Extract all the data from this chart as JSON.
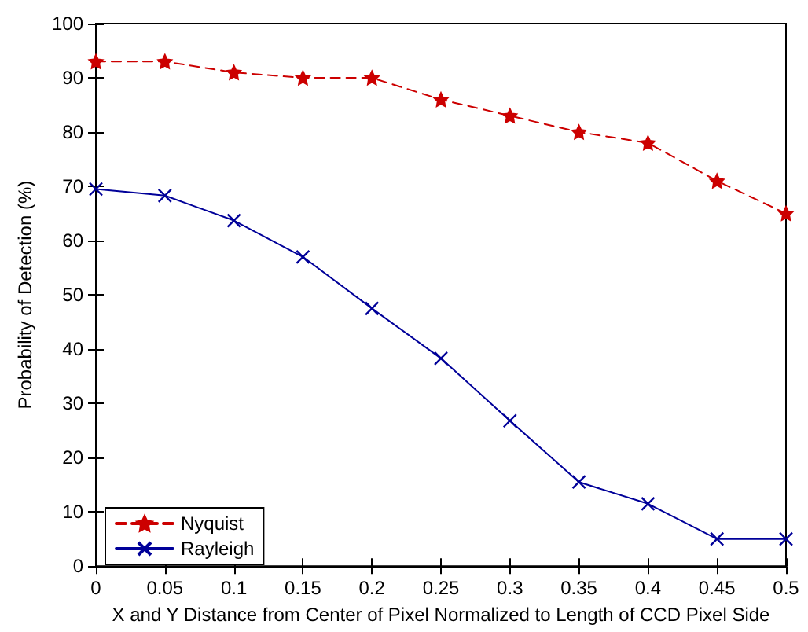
{
  "chart_data": {
    "type": "line",
    "xlabel": "X and Y Distance from Center of Pixel Normalized to Length of CCD Pixel Side",
    "ylabel": "Probability of Detection (%)",
    "x": [
      0,
      0.05,
      0.1,
      0.15,
      0.2,
      0.25,
      0.3,
      0.35,
      0.4,
      0.45,
      0.5
    ],
    "series": [
      {
        "name": "Nyquist",
        "color": "#cc0000",
        "marker": "star",
        "line_style": "dashed",
        "values": [
          93,
          93,
          91,
          90,
          90,
          86,
          83,
          80,
          78,
          71,
          65
        ]
      },
      {
        "name": "Rayleigh",
        "color": "#000099",
        "marker": "cross",
        "line_style": "solid",
        "values": [
          69.5,
          68.3,
          63.7,
          57,
          47.5,
          38.3,
          26.8,
          15.5,
          11.5,
          5,
          5
        ]
      }
    ],
    "xlim": [
      0,
      0.5
    ],
    "xticks": [
      0,
      0.05,
      0.1,
      0.15,
      0.2,
      0.25,
      0.3,
      0.35,
      0.4,
      0.45,
      0.5
    ],
    "ylim": [
      0,
      100
    ],
    "yticks": [
      0,
      10,
      20,
      30,
      40,
      50,
      60,
      70,
      80,
      90,
      100
    ],
    "grid": false,
    "legend": "bottom left"
  }
}
